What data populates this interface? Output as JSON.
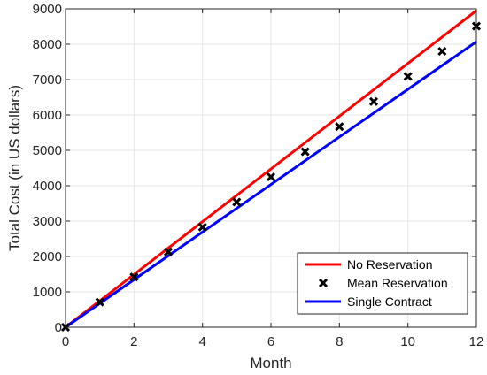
{
  "chart_data": {
    "type": "line",
    "xlabel": "Month",
    "ylabel": "Total Cost (in US dollars)",
    "xlim": [
      0,
      12
    ],
    "ylim": [
      0,
      9000
    ],
    "xticks": [
      0,
      2,
      4,
      6,
      8,
      10,
      12
    ],
    "yticks": [
      0,
      1000,
      2000,
      3000,
      4000,
      5000,
      6000,
      7000,
      8000,
      9000
    ],
    "grid": true,
    "legend_position": "bottom-right",
    "series": [
      {
        "name": "No Reservation",
        "style": "line",
        "color": "#ff0000",
        "x": [
          0,
          12
        ],
        "y": [
          0,
          8950
        ]
      },
      {
        "name": "Mean Reservation",
        "style": "marker-x",
        "color": "#000000",
        "x": [
          0,
          1,
          2,
          3,
          4,
          5,
          6,
          7,
          8,
          9,
          10,
          11,
          12
        ],
        "y": [
          0,
          710,
          1420,
          2130,
          2830,
          3540,
          4250,
          4960,
          5670,
          6380,
          7090,
          7800,
          8510
        ]
      },
      {
        "name": "Single Contract",
        "style": "line",
        "color": "#0000ff",
        "x": [
          0,
          12
        ],
        "y": [
          0,
          8070
        ]
      }
    ]
  }
}
